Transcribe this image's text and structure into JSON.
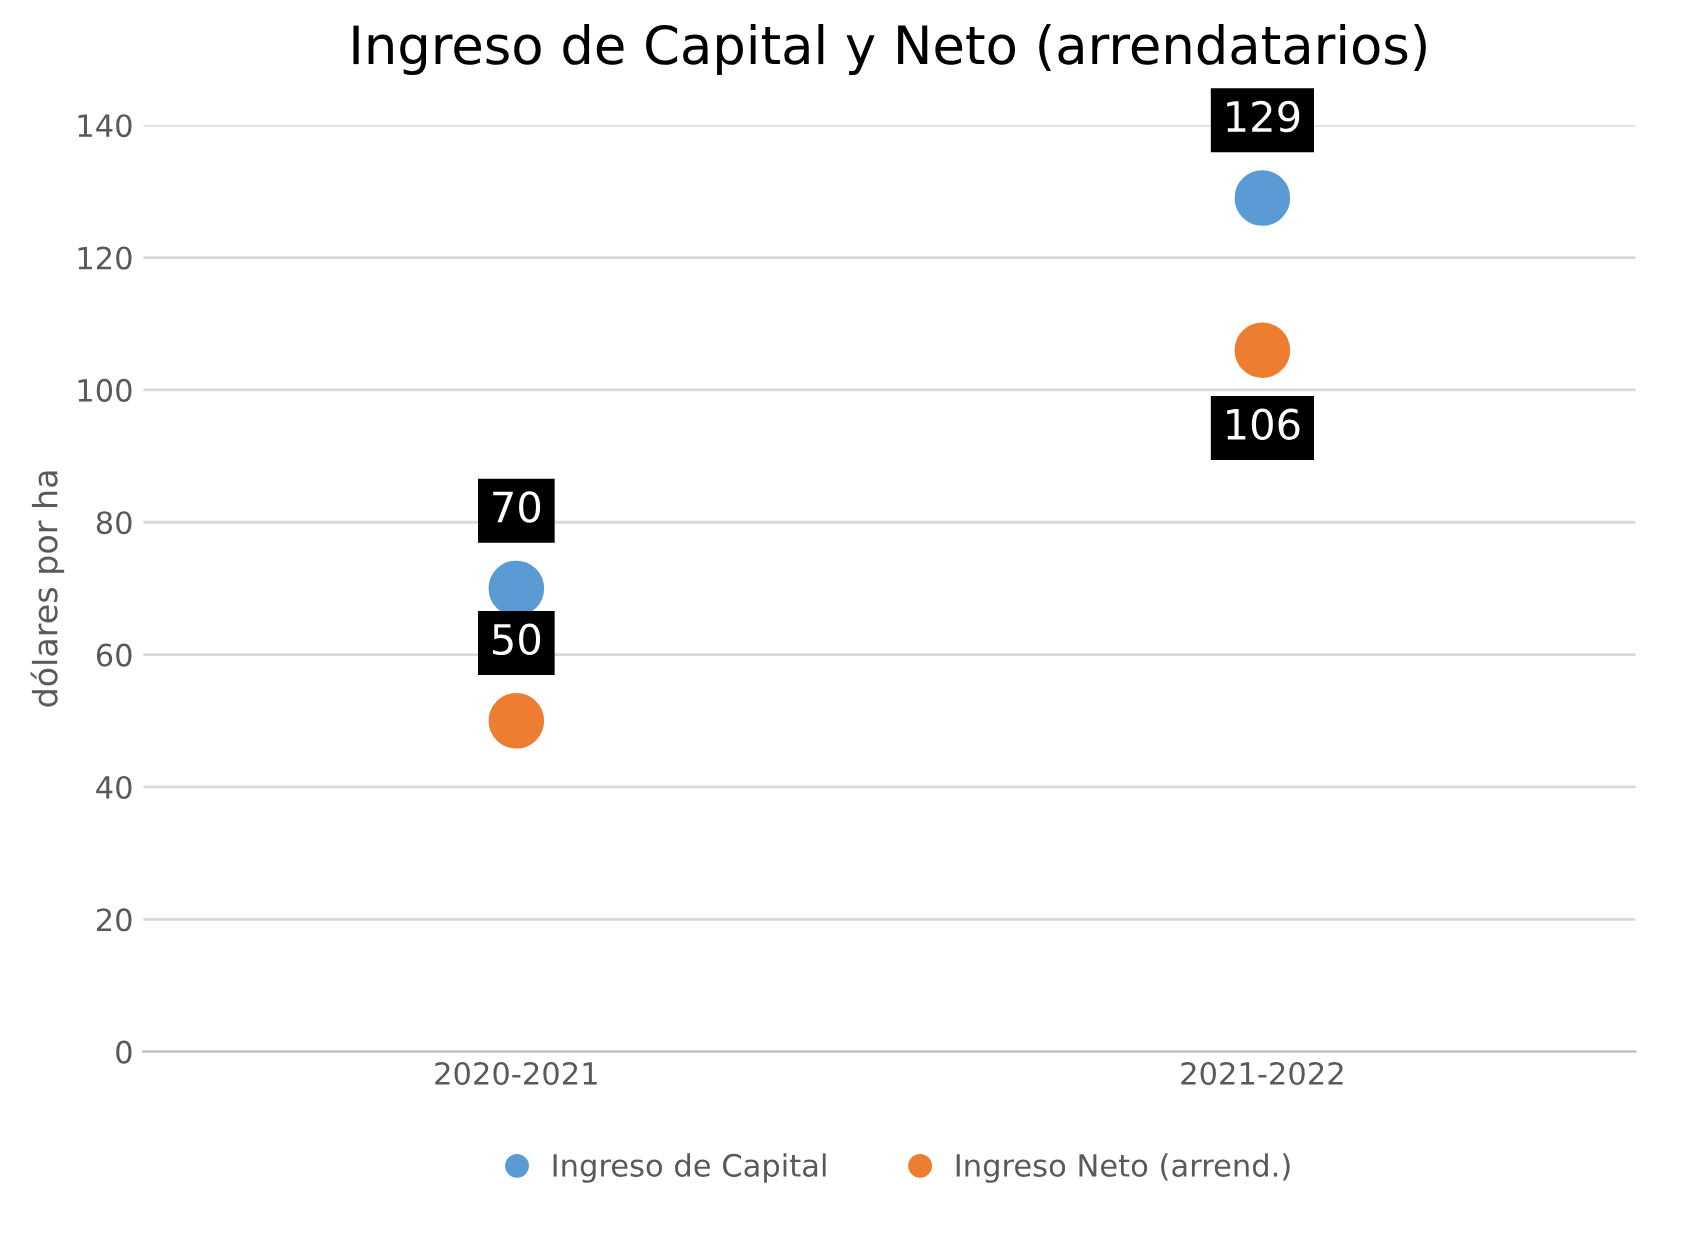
{
  "chart_data": {
    "type": "scatter",
    "title": "Ingreso de Capital y Neto (arrendatarios)",
    "ylabel": "dólares por ha",
    "categories": [
      "2020-2021",
      "2021-2022"
    ],
    "series": [
      {
        "name": "Ingreso de Capital",
        "color": "#5b9bd5",
        "values": [
          70,
          129
        ]
      },
      {
        "name": "Ingreso Neto (arrend.)",
        "color": "#ed7d31",
        "values": [
          50,
          106
        ]
      }
    ],
    "ylim": [
      0,
      140
    ],
    "yticks": [
      0,
      20,
      40,
      60,
      80,
      100,
      120,
      140
    ],
    "grid": "y",
    "legend": "bottom",
    "marker": "circle",
    "data_labels": true
  }
}
